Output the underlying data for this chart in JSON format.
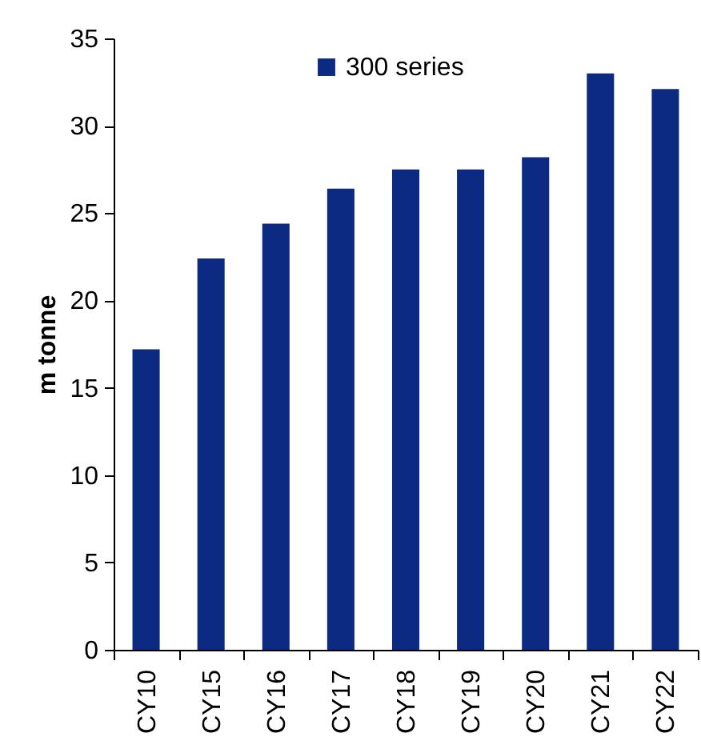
{
  "chart_data": {
    "type": "bar",
    "ylabel": "m tonne",
    "categories": [
      "CY10",
      "CY15",
      "CY16",
      "CY17",
      "CY18",
      "CY19",
      "CY20",
      "CY21",
      "CY22"
    ],
    "series": [
      {
        "name": "300 series",
        "color": "#0c2a82",
        "values": [
          17.2,
          22.4,
          24.4,
          26.4,
          27.5,
          27.5,
          28.2,
          33.0,
          32.1
        ]
      }
    ],
    "ylim": [
      0,
      35
    ],
    "yticks": [
      0,
      5,
      10,
      15,
      20,
      25,
      30,
      35
    ],
    "grid": false,
    "legend": "top"
  }
}
